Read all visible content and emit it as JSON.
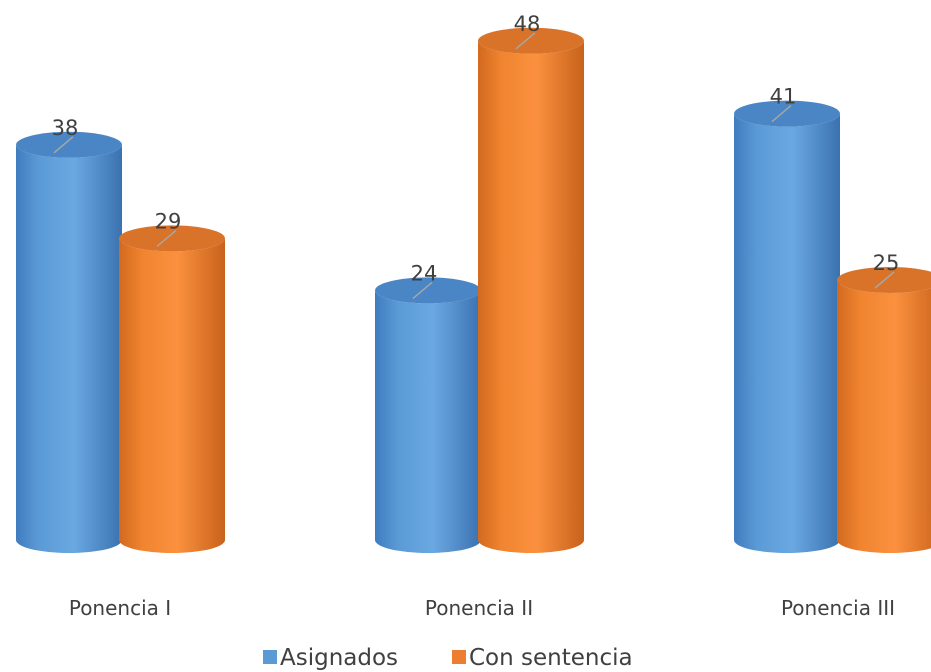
{
  "chart_data": {
    "type": "bar",
    "style": "3d-cylinder",
    "title": "",
    "xlabel": "",
    "ylabel": "",
    "ylim": [
      0,
      50
    ],
    "grid": false,
    "legend_position": "bottom",
    "categories": [
      "Ponencia I",
      "Ponencia II",
      "Ponencia III"
    ],
    "series": [
      {
        "name": "Asignados",
        "values": [
          38,
          24,
          41
        ],
        "color": "#5b9bd5"
      },
      {
        "name": "Con sentencia",
        "values": [
          29,
          48,
          25
        ],
        "color": "#ed7d31"
      }
    ],
    "data_labels": true
  }
}
